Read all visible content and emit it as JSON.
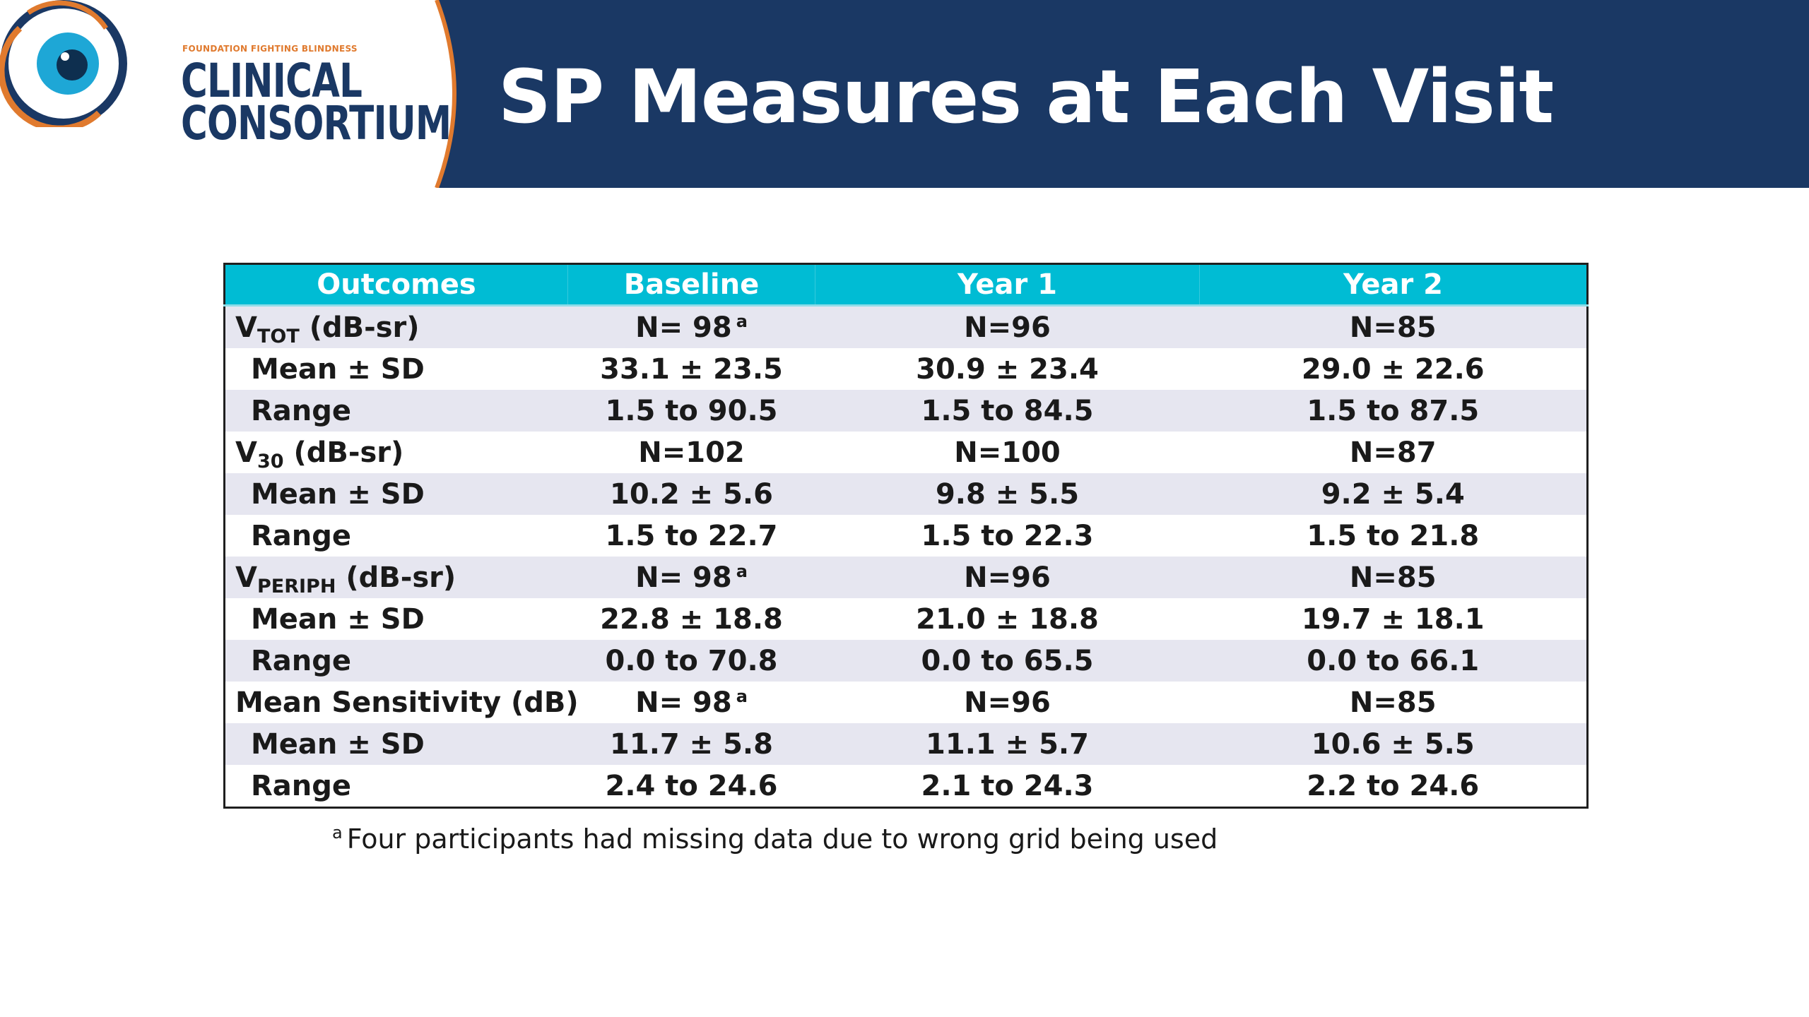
{
  "header": {
    "title": "SP Measures at Each Visit",
    "bg_color": "#1a3864"
  },
  "logo": {
    "org": "FOUNDATION FIGHTING BLINDNESS",
    "line1": "CLINICAL",
    "line2": "CONSORTIUM",
    "accent_color": "#e07a2e",
    "eye_color": "#1ea7d6"
  },
  "table": {
    "header_color": "#00bcd4",
    "columns": [
      "Outcomes",
      "Baseline",
      "Year 1",
      "Year 2"
    ],
    "groups": [
      {
        "label_main": "V",
        "label_sub": "TOT",
        "label_unit": " (dB-sr)",
        "n": [
          {
            "text": "N= 98",
            "sup": "a"
          },
          {
            "text": "N=96",
            "sup": ""
          },
          {
            "text": "N=85",
            "sup": ""
          }
        ],
        "mean_label": "Mean ± SD",
        "mean": [
          "33.1 ± 23.5",
          "30.9 ± 23.4",
          "29.0 ± 22.6"
        ],
        "range_label": "Range",
        "range": [
          "1.5 to 90.5",
          "1.5 to 84.5",
          "1.5 to 87.5"
        ]
      },
      {
        "label_main": "V",
        "label_sub": "30",
        "label_unit": " (dB-sr)",
        "n": [
          {
            "text": "N=102",
            "sup": ""
          },
          {
            "text": "N=100",
            "sup": ""
          },
          {
            "text": "N=87",
            "sup": ""
          }
        ],
        "mean_label": "Mean ± SD",
        "mean": [
          "10.2 ± 5.6",
          "9.8 ± 5.5",
          "9.2 ± 5.4"
        ],
        "range_label": "Range",
        "range": [
          "1.5 to 22.7",
          "1.5 to 22.3",
          "1.5 to 21.8"
        ]
      },
      {
        "label_main": "V",
        "label_sub": "PERIPH",
        "label_unit": " (dB-sr)",
        "n": [
          {
            "text": "N= 98",
            "sup": "a"
          },
          {
            "text": "N=96",
            "sup": ""
          },
          {
            "text": "N=85",
            "sup": ""
          }
        ],
        "mean_label": "Mean ± SD",
        "mean": [
          "22.8 ± 18.8",
          "21.0 ± 18.8",
          "19.7 ± 18.1"
        ],
        "range_label": "Range",
        "range": [
          "0.0 to 70.8",
          "0.0 to 65.5",
          "0.0 to 66.1"
        ]
      },
      {
        "label_main": "Mean Sensitivity (dB)",
        "label_sub": "",
        "label_unit": "",
        "n": [
          {
            "text": "N= 98",
            "sup": "a"
          },
          {
            "text": "N=96",
            "sup": ""
          },
          {
            "text": "N=85",
            "sup": ""
          }
        ],
        "mean_label": "Mean ± SD",
        "mean": [
          "11.7 ± 5.8",
          "11.1 ± 5.7",
          "10.6 ± 5.5"
        ],
        "range_label": "Range",
        "range": [
          "2.4 to 24.6",
          "2.1 to 24.3",
          "2.2 to 24.6"
        ]
      }
    ]
  },
  "footnote": {
    "marker": "a",
    "text": "Four participants had missing data due to wrong grid being used"
  }
}
